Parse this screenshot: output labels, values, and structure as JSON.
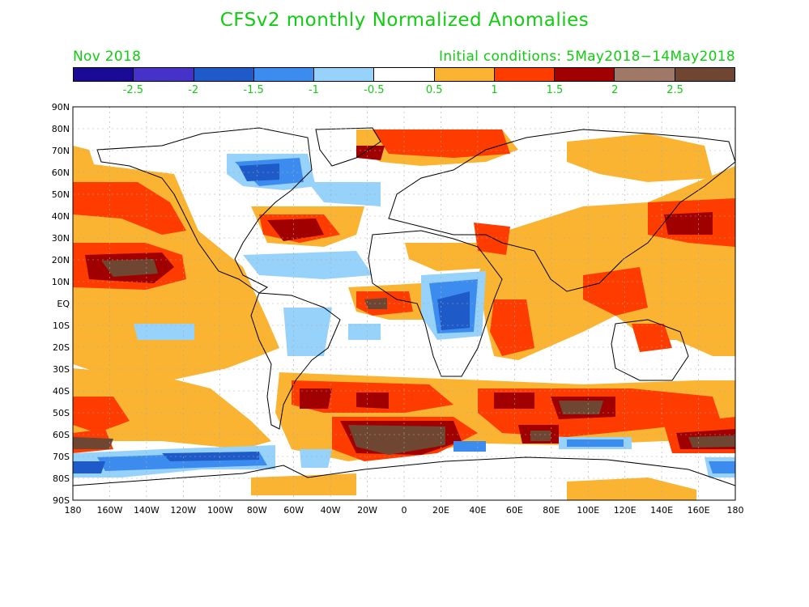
{
  "title": "CFSv2 monthly Normalized Anomalies",
  "forecast_month": "Nov 2018",
  "initial_conditions": "Initial conditions: 5May2018−14May2018",
  "text_color": "#11cc11",
  "colorbar": {
    "colors": [
      "#1a0a96",
      "#4632c8",
      "#1e5ac8",
      "#3c8cf0",
      "#96d2fa",
      "#ffffff",
      "#fab432",
      "#ff3c00",
      "#a00000",
      "#a07868",
      "#6e4632"
    ],
    "labels": [
      "-2.5",
      "-2",
      "-1.5",
      "-1",
      "-0.5",
      "0.5",
      "1",
      "1.5",
      "2",
      "2.5"
    ]
  },
  "map": {
    "lat_labels": [
      "90N",
      "80N",
      "70N",
      "60N",
      "50N",
      "40N",
      "30N",
      "20N",
      "10N",
      "EQ",
      "10S",
      "20S",
      "30S",
      "40S",
      "50S",
      "60S",
      "70S",
      "80S",
      "90S"
    ],
    "lon_labels": [
      "180",
      "160W",
      "140W",
      "120W",
      "100W",
      "80W",
      "60W",
      "40W",
      "20W",
      "0",
      "20E",
      "40E",
      "60E",
      "80E",
      "100E",
      "120E",
      "140E",
      "160E",
      "180"
    ]
  }
}
